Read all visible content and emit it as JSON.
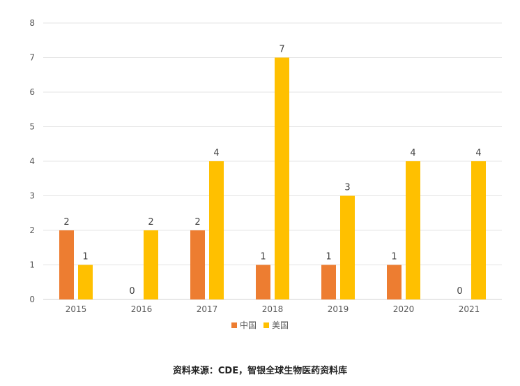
{
  "chart_data": {
    "type": "bar",
    "title": "",
    "xlabel": "",
    "ylabel": "",
    "categories": [
      "2015",
      "2016",
      "2017",
      "2018",
      "2019",
      "2020",
      "2021"
    ],
    "series": [
      {
        "name": "中国",
        "color": "#ED7D31",
        "values": [
          2,
          0,
          2,
          1,
          1,
          1,
          0
        ]
      },
      {
        "name": "美国",
        "color": "#FFC000",
        "values": [
          1,
          2,
          4,
          7,
          3,
          4,
          4
        ]
      }
    ],
    "ylim": [
      0,
      8
    ],
    "yticks": [
      0,
      1,
      2,
      3,
      4,
      5,
      6,
      7,
      8
    ],
    "grid": true,
    "legend_position": "bottom-center"
  },
  "source": "资料来源：CDE，智银全球生物医药资料库"
}
